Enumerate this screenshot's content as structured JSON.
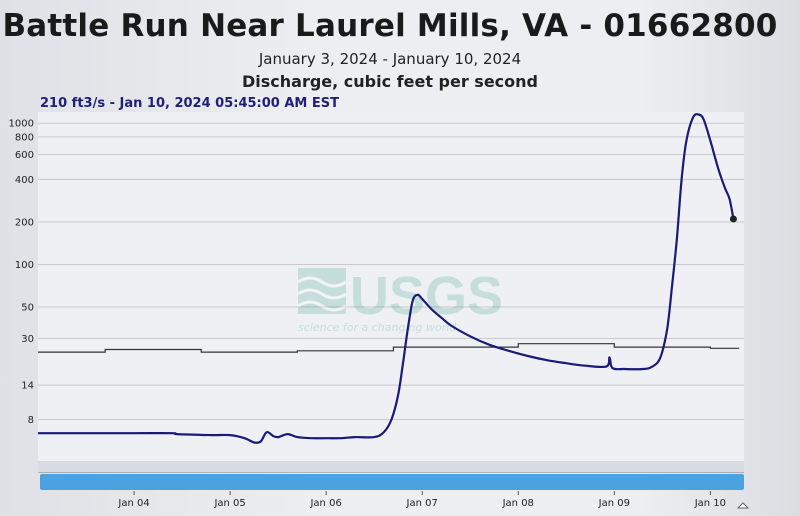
{
  "header": {
    "title": "Battle Run Near Laurel Mills, VA - 01662800",
    "subtitle": "January 3, 2024 - January 10, 2024",
    "parameter": "Discharge, cubic feet per second"
  },
  "readout": "210 ft3/s - Jan 10, 2024 05:45:00 AM EST",
  "watermark": {
    "logo_text": "USGS",
    "tagline": "science for a changing world"
  },
  "colors": {
    "series": "#1c1a78",
    "reference": "#333333",
    "grid": "#c8c8c8",
    "navigator": "#4aa3e0"
  },
  "chart_data": {
    "type": "line",
    "yscale": "log",
    "ylim": [
      4,
      1200
    ],
    "xlim": [
      3.0,
      10.35
    ],
    "yticks": [
      {
        "label": "1000",
        "value": 1000
      },
      {
        "label": "800",
        "value": 800
      },
      {
        "label": "600",
        "value": 600
      },
      {
        "label": "400",
        "value": 400
      },
      {
        "label": "200",
        "value": 200
      },
      {
        "label": "100",
        "value": 100
      },
      {
        "label": "50",
        "value": 50
      },
      {
        "label": "30",
        "value": 30
      },
      {
        "label": "14",
        "value": 14
      },
      {
        "label": "8",
        "value": 8
      }
    ],
    "xticks": [
      {
        "label": "Jan 04",
        "value": 4
      },
      {
        "label": "Jan 05",
        "value": 5
      },
      {
        "label": "Jan 06",
        "value": 6
      },
      {
        "label": "Jan 07",
        "value": 7
      },
      {
        "label": "Jan 08",
        "value": 8
      },
      {
        "label": "Jan 09",
        "value": 9
      },
      {
        "label": "Jan 10",
        "value": 10
      }
    ],
    "series": [
      {
        "points": [
          [
            3.0,
            6.4
          ],
          [
            3.5,
            6.4
          ],
          [
            4.0,
            6.4
          ],
          [
            4.4,
            6.4
          ],
          [
            4.45,
            6.3
          ],
          [
            4.8,
            6.2
          ],
          [
            5.0,
            6.2
          ],
          [
            5.15,
            5.9
          ],
          [
            5.25,
            5.5
          ],
          [
            5.32,
            5.6
          ],
          [
            5.38,
            6.5
          ],
          [
            5.45,
            6.1
          ],
          [
            5.5,
            6.0
          ],
          [
            5.6,
            6.3
          ],
          [
            5.7,
            6.0
          ],
          [
            5.85,
            5.9
          ],
          [
            6.0,
            5.9
          ],
          [
            6.15,
            5.9
          ],
          [
            6.3,
            6.0
          ],
          [
            6.5,
            6.0
          ],
          [
            6.6,
            6.5
          ],
          [
            6.68,
            8.0
          ],
          [
            6.75,
            12
          ],
          [
            6.8,
            20
          ],
          [
            6.85,
            35
          ],
          [
            6.9,
            55
          ],
          [
            6.95,
            61
          ],
          [
            7.0,
            57
          ],
          [
            7.1,
            48
          ],
          [
            7.2,
            42
          ],
          [
            7.3,
            37
          ],
          [
            7.5,
            31
          ],
          [
            7.7,
            27
          ],
          [
            7.9,
            24.5
          ],
          [
            8.1,
            22.5
          ],
          [
            8.3,
            21
          ],
          [
            8.5,
            20
          ],
          [
            8.7,
            19.2
          ],
          [
            8.92,
            19
          ],
          [
            8.95,
            22
          ],
          [
            8.98,
            18.5
          ],
          [
            9.1,
            18.2
          ],
          [
            9.3,
            18.2
          ],
          [
            9.4,
            19
          ],
          [
            9.48,
            22
          ],
          [
            9.55,
            35
          ],
          [
            9.6,
            70
          ],
          [
            9.65,
            150
          ],
          [
            9.7,
            400
          ],
          [
            9.75,
            750
          ],
          [
            9.82,
            1100
          ],
          [
            9.88,
            1150
          ],
          [
            9.93,
            1060
          ],
          [
            10.0,
            750
          ],
          [
            10.08,
            480
          ],
          [
            10.15,
            350
          ],
          [
            10.2,
            290
          ],
          [
            10.24,
            210
          ]
        ]
      },
      {
        "name": "",
        "values": [
          [
            [
              3.0,
              24
            ],
            [
              3.7,
              24
            ],
            [
              3.7,
              25
            ],
            [
              4.7,
              25
            ],
            [
              4.7,
              24
            ],
            [
              5.7,
              24
            ],
            [
              5.7,
              24.5
            ],
            [
              6.7,
              24.5
            ],
            [
              6.7,
              26
            ],
            [
              8.0,
              26
            ],
            [
              8.0,
              27.5
            ],
            [
              9.0,
              27.5
            ],
            [
              9.0,
              26
            ],
            [
              10.0,
              26
            ],
            [
              10.0,
              25.5
            ],
            [
              10.3,
              25.5
            ]
          ]
        ]
      }
    ],
    "last_point": {
      "x": 10.24,
      "y": 210
    }
  }
}
